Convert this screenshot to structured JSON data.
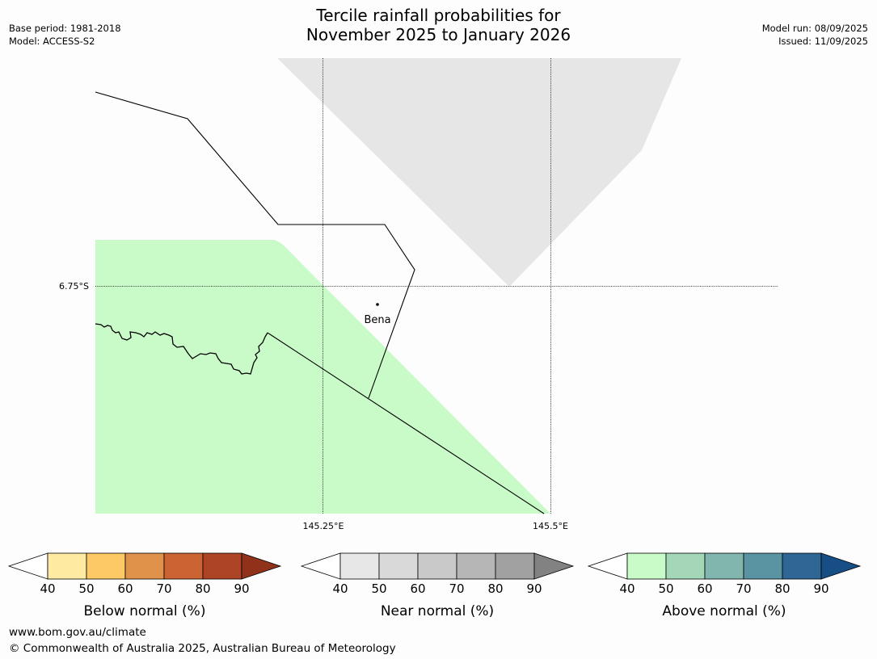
{
  "header": {
    "title_line1": "Tercile rainfall probabilities for",
    "title_line2": "November 2025 to January 2026",
    "base_period": "Base period: 1981-2018",
    "model": "Model: ACCESS-S2",
    "model_run": "Model run: 08/09/2025",
    "issued": "Issued: 11/09/2025"
  },
  "map": {
    "lat_label": "6.75°S",
    "lon_labels": [
      "145.25°E",
      "145.5°E"
    ],
    "place": "Bena",
    "colors": {
      "near_normal_fill": "#e6e6e6",
      "above_normal_fill": "#c9fbc9",
      "boundary": "#000000"
    }
  },
  "legends": [
    {
      "label": "Below normal (%)",
      "ticks": [
        "40",
        "50",
        "60",
        "70",
        "80",
        "90"
      ],
      "colors": [
        "#ffffff",
        "#feeaa0",
        "#fdc965",
        "#e0914a",
        "#cb6332",
        "#ad4425",
        "#8f3219"
      ]
    },
    {
      "label": "Near normal (%)",
      "ticks": [
        "40",
        "50",
        "60",
        "70",
        "80",
        "90"
      ],
      "colors": [
        "#ffffff",
        "#e7e7e7",
        "#d9d9d9",
        "#c9c9c9",
        "#b6b6b6",
        "#a1a1a1",
        "#828282"
      ]
    },
    {
      "label": "Above normal (%)",
      "ticks": [
        "40",
        "50",
        "60",
        "70",
        "80",
        "90"
      ],
      "colors": [
        "#ffffff",
        "#c9fbc9",
        "#a4d7b7",
        "#81b6ae",
        "#5a93a1",
        "#2e6696",
        "#174e85"
      ]
    }
  ],
  "footer": {
    "url": "www.bom.gov.au/climate",
    "copyright": "© Commonwealth of Australia 2025, Australian Bureau of Meteorology"
  }
}
